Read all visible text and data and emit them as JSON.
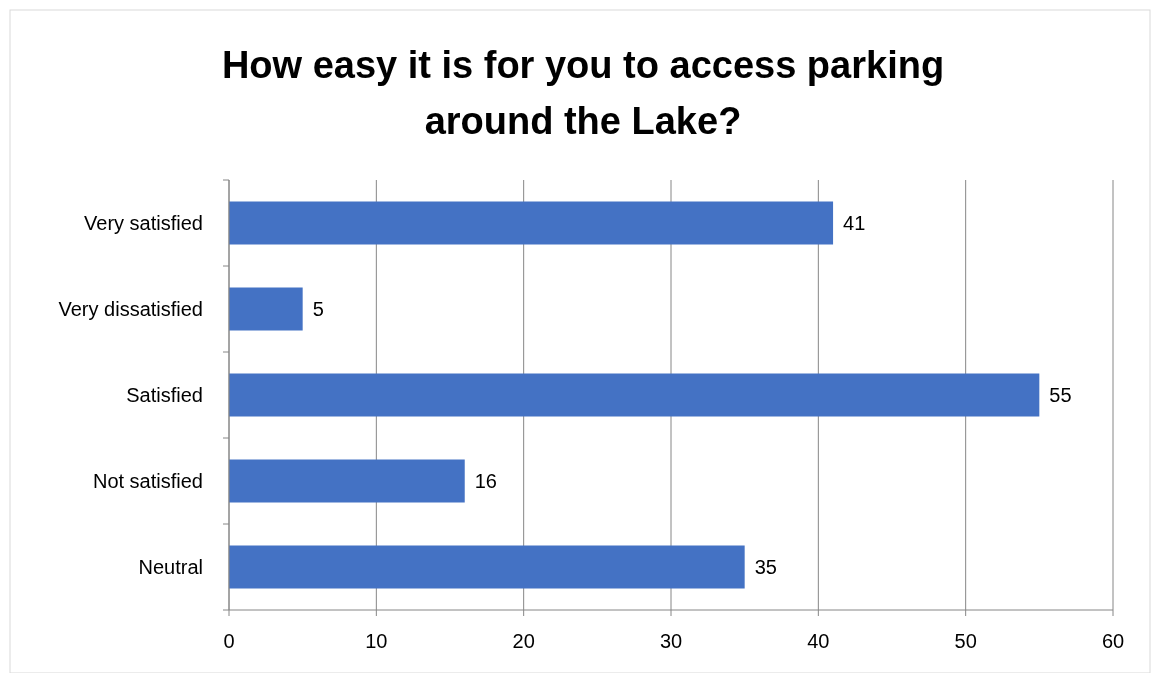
{
  "chart_data": {
    "type": "bar",
    "orientation": "horizontal",
    "title": "How easy it is for you to access parking around the Lake?",
    "categories": [
      "Very satisfied",
      "Very dissatisfied",
      "Satisfied",
      "Not satisfied",
      "Neutral"
    ],
    "values": [
      41,
      5,
      55,
      16,
      35
    ],
    "color": "#4472c4",
    "xlim": [
      0,
      60
    ],
    "xticks": [
      0,
      10,
      20,
      30,
      40,
      50,
      60
    ],
    "grid": "x",
    "data_labels": true
  }
}
